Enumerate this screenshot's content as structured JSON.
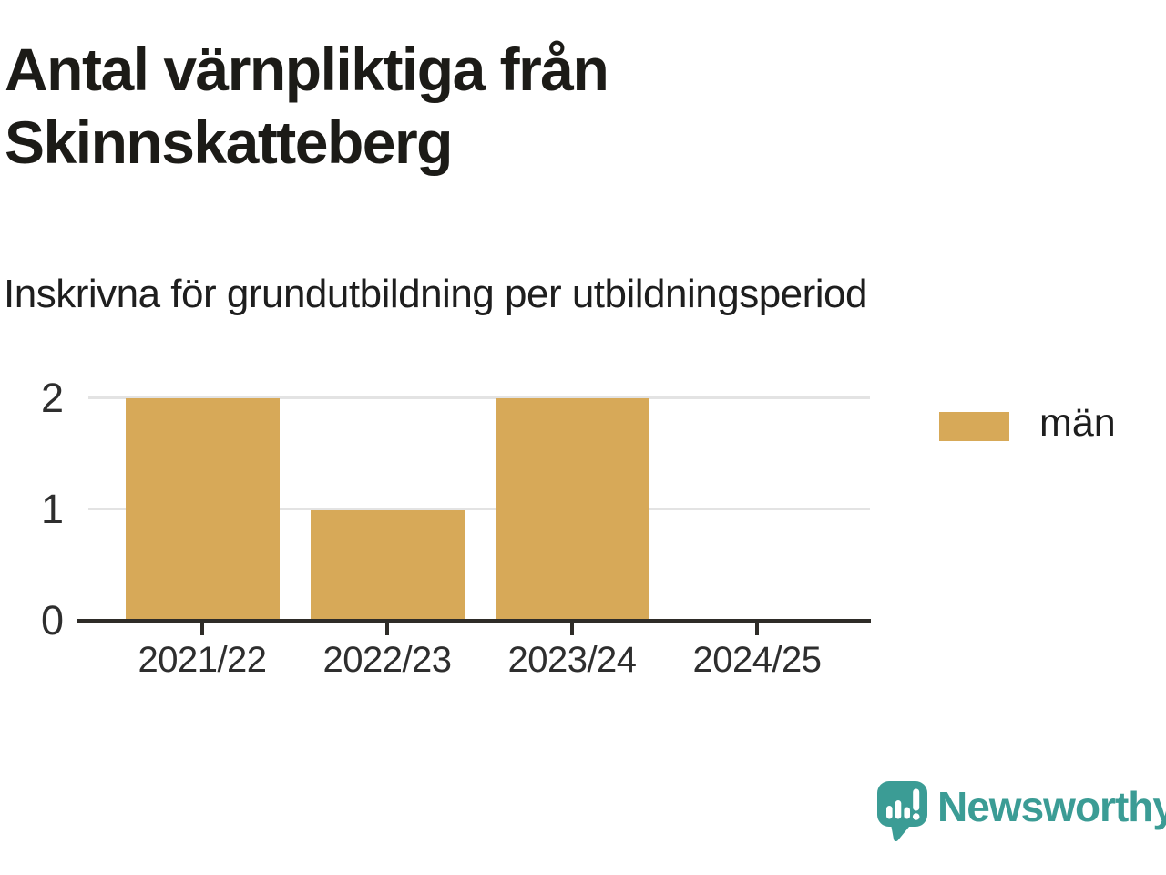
{
  "header": {
    "title": "Antal värnpliktiga från\nSkinnskatteberg",
    "subtitle": "Inskrivna för grundutbildning per utbildningsperiod"
  },
  "chart_data": {
    "type": "bar",
    "title": "Antal värnpliktiga från Skinnskatteberg",
    "subtitle": "Inskrivna för grundutbildning per utbildningsperiod",
    "categories": [
      "2021/22",
      "2022/23",
      "2023/24",
      "2024/25"
    ],
    "series": [
      {
        "name": "män",
        "values": [
          2,
          1,
          2,
          0
        ]
      }
    ],
    "xlabel": "",
    "ylabel": "",
    "yticks": [
      0,
      1,
      2
    ],
    "ylim": [
      0,
      2
    ],
    "grid": "horizontal",
    "legend_position": "right",
    "bar_color": "#d7a958"
  },
  "legend": {
    "items": [
      {
        "label": "män",
        "color": "#d7a958"
      }
    ]
  },
  "branding": {
    "logo_text": "Newsworthy",
    "logo_icon": "chart-speech-bubble",
    "color": "#3b9c95"
  },
  "colors": {
    "title": "#1c1b17",
    "subtitle": "#1e1e1e",
    "axis_text": "#2e2e2e",
    "axis_line": "#2e2c28",
    "gridline": "#e3e3e3",
    "bar": "#d7a958",
    "brand": "#3b9c95",
    "background": "#ffffff"
  }
}
